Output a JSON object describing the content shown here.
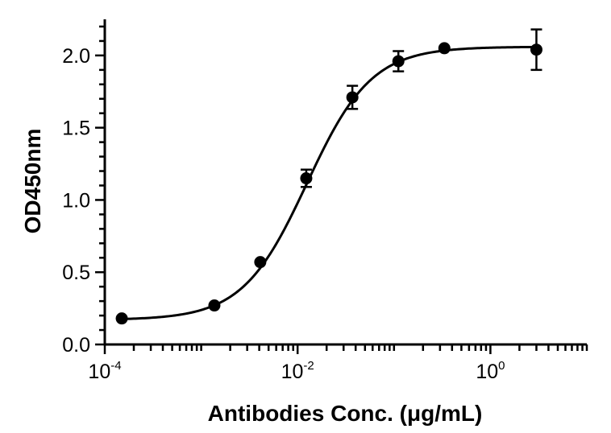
{
  "chart_data": {
    "type": "scatter",
    "xlabel": "Antibodies Conc. (μg/mL)",
    "ylabel": "OD450nm",
    "xscale": "log",
    "xlim": [
      0.0001,
      10
    ],
    "ylim": [
      0,
      2.25
    ],
    "x_ticks": [
      {
        "value": 0.0001,
        "base": "10",
        "exp": "-4"
      },
      {
        "value": 0.01,
        "base": "10",
        "exp": "-2"
      },
      {
        "value": 1,
        "base": "10",
        "exp": "0"
      }
    ],
    "y_ticks": [
      {
        "value": 0,
        "label": "0.0"
      },
      {
        "value": 0.5,
        "label": "0.5"
      },
      {
        "value": 1.0,
        "label": "1.0"
      },
      {
        "value": 1.5,
        "label": "1.5"
      },
      {
        "value": 2.0,
        "label": "2.0"
      }
    ],
    "grid": false,
    "points": [
      {
        "x": 0.00015,
        "y": 0.18,
        "err": 0
      },
      {
        "x": 0.00137,
        "y": 0.27,
        "err": 0
      },
      {
        "x": 0.0041,
        "y": 0.57,
        "err": 0
      },
      {
        "x": 0.0123,
        "y": 1.15,
        "err": 0.06
      },
      {
        "x": 0.037,
        "y": 1.71,
        "err": 0.08
      },
      {
        "x": 0.111,
        "y": 1.96,
        "err": 0.07
      },
      {
        "x": 0.333,
        "y": 2.05,
        "err": 0
      },
      {
        "x": 3.0,
        "y": 2.04,
        "err": 0.14
      }
    ],
    "fit": {
      "model": "4PL",
      "bottom": 0.17,
      "top": 2.06,
      "ec50": 0.0125,
      "hill": 1.3
    }
  }
}
